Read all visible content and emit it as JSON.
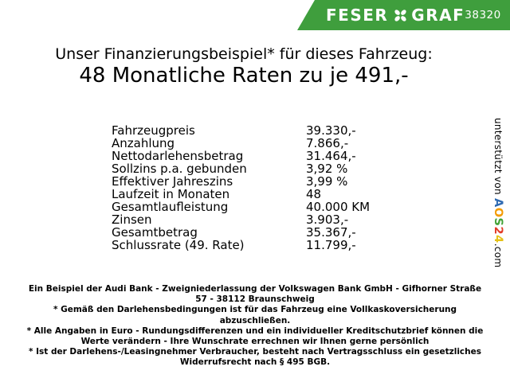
{
  "header": {
    "brand_left": "FESER",
    "brand_right": "GRAF",
    "icon": "clover-icon",
    "dealer_number": "38320",
    "banner_color": "#3f9e3d"
  },
  "heading": {
    "line1": "Unser Finanzierungsbeispiel* für dieses Fahrzeug:",
    "line2": "48 Monatliche Raten zu je 491,-"
  },
  "finance_table": {
    "rows": [
      {
        "label": "Fahrzeugpreis",
        "value": "39.330,-"
      },
      {
        "label": "Anzahlung",
        "value": "7.866,-"
      },
      {
        "label": "Nettodarlehensbetrag",
        "value": "31.464,-"
      },
      {
        "label": "Sollzins p.a. gebunden",
        "value": "3,92 %"
      },
      {
        "label": "Effektiver Jahreszins",
        "value": "3,99 %"
      },
      {
        "label": "Laufzeit in Monaten",
        "value": "48"
      },
      {
        "label": "Gesamtlaufleistung",
        "value": "40.000 KM"
      },
      {
        "label": "Zinsen",
        "value": "3.903,-"
      },
      {
        "label": "Gesamtbetrag",
        "value": "35.367,-"
      },
      {
        "label": "Schlussrate (49. Rate)",
        "value": "11.799,-"
      }
    ]
  },
  "footer": {
    "lines": [
      "Ein Beispiel der Audi Bank - Zweigniederlassung der Volkswagen Bank GmbH - Gifhorner Straße 57 - 38112 Braunschweig",
      "* Gemäß den Darlehensbedingungen ist für das Fahrzeug eine Vollkaskoversicherung abzuschließen.",
      "* Alle Angaben in Euro - Rundungsdifferenzen und ein individueller Kreditschutzbrief können die Werte verändern - Ihre Wunschrate errechnen wir Ihnen gerne persönlich",
      "* Ist der Darlehens-/Leasingnehmer Verbraucher, besteht nach Vertragsschluss ein gesetzliches Widerrufsrecht nach § 495 BGB."
    ]
  },
  "credit": {
    "prefix": "unterstützt von ",
    "suffix": ".com",
    "logo_letters": [
      {
        "char": "A",
        "color": "#2e6ab2"
      },
      {
        "char": "O",
        "color": "#f39b00"
      },
      {
        "char": "S",
        "color": "#44a338"
      },
      {
        "char": "2",
        "color": "#e23b28"
      },
      {
        "char": "4",
        "color": "#e5c116"
      }
    ]
  }
}
